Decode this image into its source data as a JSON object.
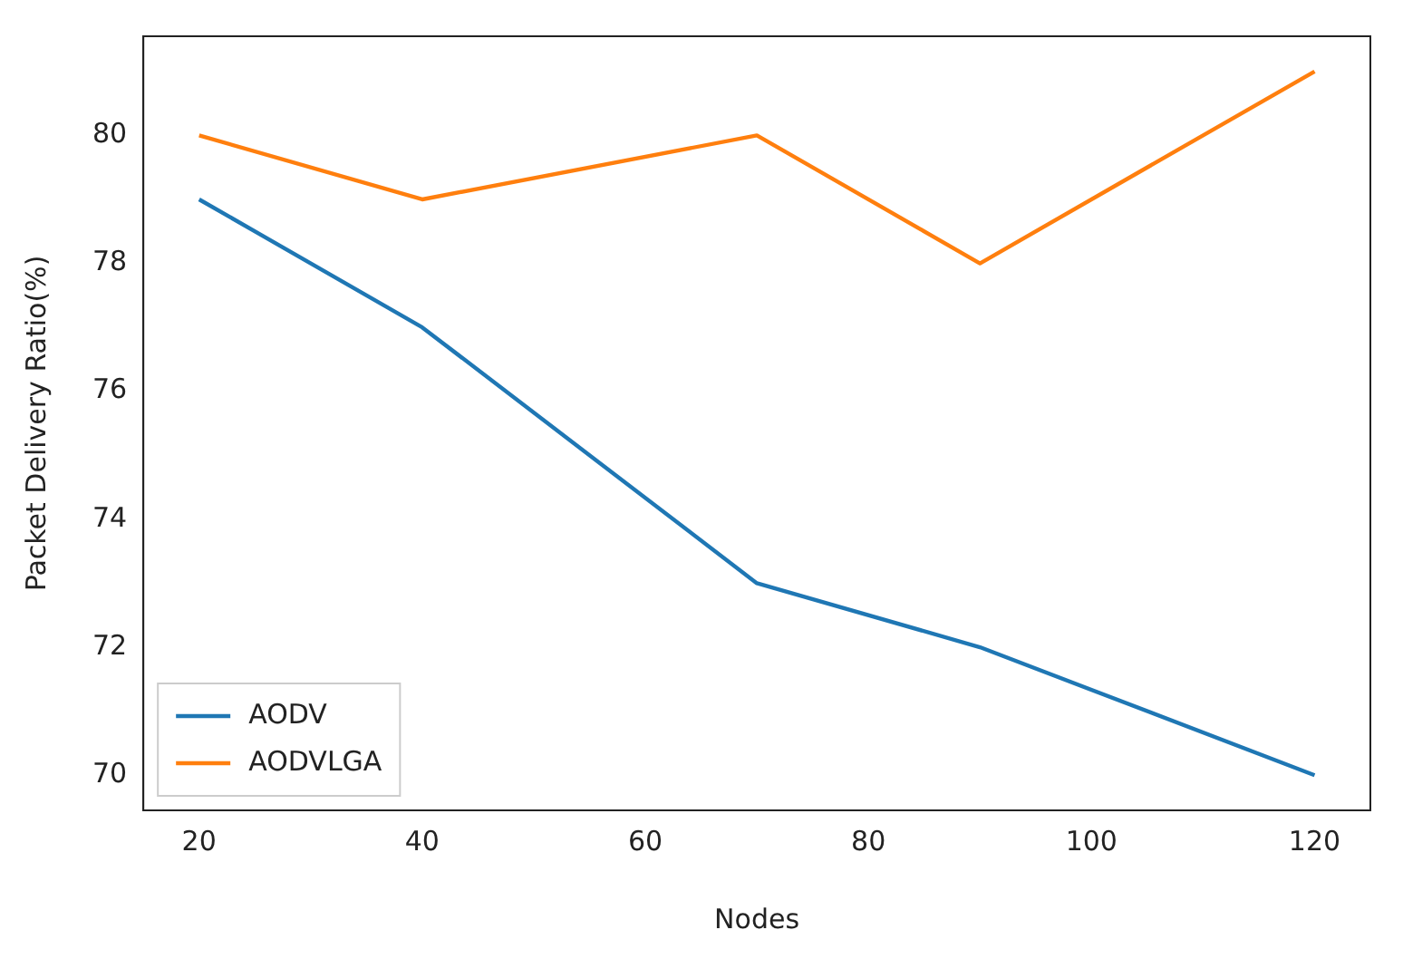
{
  "chart_data": {
    "type": "line",
    "xlabel": "Nodes",
    "ylabel": "Packet Delivery Ratio(%)",
    "x": [
      20,
      40,
      70,
      90,
      120
    ],
    "series": [
      {
        "name": "AODV",
        "color": "#1f77b4",
        "values": [
          79,
          77,
          73,
          72,
          70
        ]
      },
      {
        "name": "AODVLGA",
        "color": "#ff7f0e",
        "values": [
          80,
          79,
          80,
          78,
          81
        ]
      }
    ],
    "xlim": [
      15,
      125
    ],
    "xticks": [
      20,
      40,
      60,
      80,
      100,
      120
    ],
    "ylim": [
      69.45,
      81.55
    ],
    "yticks": [
      70,
      72,
      74,
      76,
      78,
      80
    ],
    "grid": false,
    "legend": "bottom left",
    "marker": "none",
    "line_style": "solid"
  }
}
